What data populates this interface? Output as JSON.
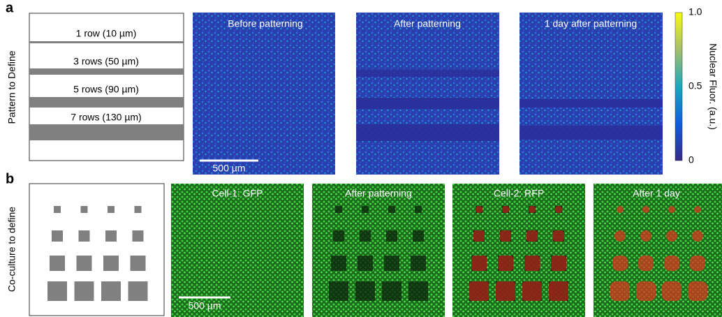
{
  "panel_a": {
    "label": "a",
    "side_label": "Pattern to Define",
    "patterns": [
      "1 row (10 µm)",
      "3 rows (50 µm)",
      "5 rows (90 µm)",
      "7 rows (130 µm)"
    ],
    "images": [
      "Before patterning",
      "After patterning",
      "1 day after patterning"
    ],
    "scale_bar": "500 µm",
    "colorbar": {
      "label": "Nuclear Fluor. (a.u.)",
      "ticks": [
        "1.0",
        "0.5",
        "0"
      ]
    }
  },
  "panel_b": {
    "label": "b",
    "side_label": "Co-culture to define",
    "images": [
      "Cell-1: GFP",
      "After patterning",
      "Cell-2: RFP",
      "After 1 day"
    ],
    "scale_bar": "500 µm"
  }
}
